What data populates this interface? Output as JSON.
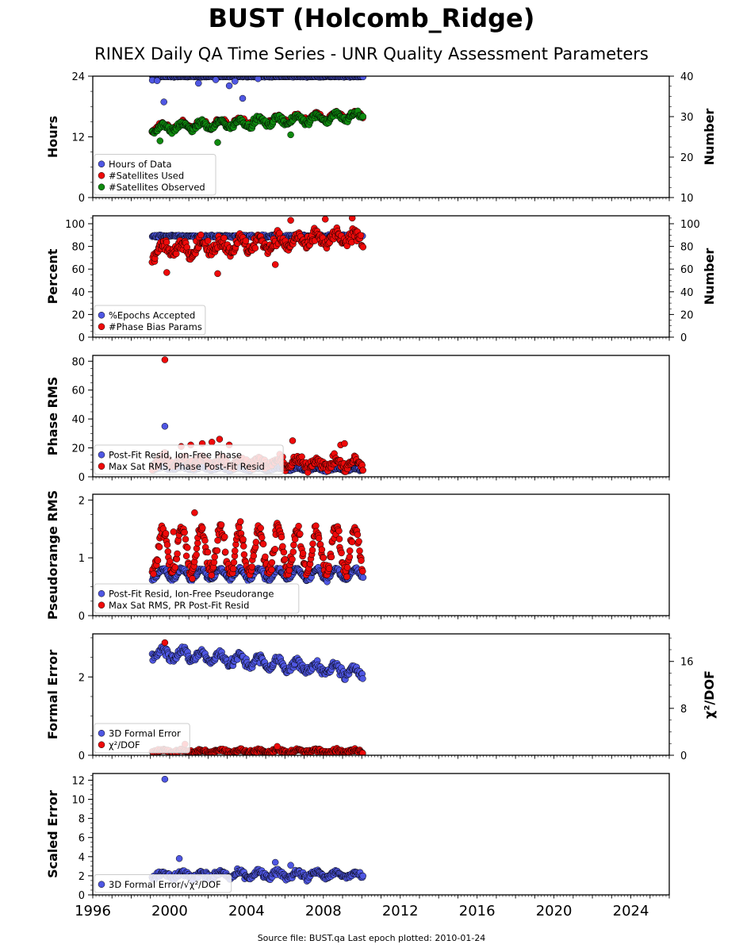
{
  "title": "BUST (Holcomb_Ridge)",
  "subtitle": "RINEX Daily QA Time Series - UNR Quality Assessment Parameters",
  "footer": "Source file: BUST.qa Last epoch plotted: 2010-01-24",
  "colors": {
    "blue": "#4f57e3",
    "red": "#ee0a0a",
    "green": "#0f8a0f"
  },
  "x_axis": {
    "range": [
      1996,
      2026
    ],
    "ticks": [
      "1996",
      "2000",
      "2004",
      "2008",
      "2012",
      "2016",
      "2020",
      "2024"
    ]
  },
  "chart_data": [
    {
      "type": "scatter",
      "ylabel": "Hours",
      "y_range": [
        0,
        24
      ],
      "y_ticks": [
        "0",
        "12",
        "24"
      ],
      "right_axis": {
        "label": "Number",
        "range": [
          10,
          40
        ],
        "ticks": [
          "10",
          "20",
          "30",
          "40"
        ]
      },
      "legend": {
        "placement": "bottom-left",
        "entries": [
          {
            "label": "Hours of Data",
            "color": "blue"
          },
          {
            "label": "#Satellites Used",
            "color": "red"
          },
          {
            "label": "#Satellites Observed",
            "color": "green"
          }
        ]
      },
      "series": [
        {
          "name": "Hours of Data",
          "color": "blue",
          "axis": "left",
          "start": 1999.1,
          "end": 2010.07,
          "base": 23.9,
          "seasonal": 0,
          "trend": 0,
          "noise": 0.1,
          "outliers": [
            [
              1999.1,
              23.2
            ],
            [
              1999.35,
              23.1
            ],
            [
              1999.7,
              18.9
            ],
            [
              2001.5,
              22.6
            ],
            [
              2002.4,
              23.3
            ],
            [
              2003.1,
              22.1
            ],
            [
              2003.4,
              23.0
            ],
            [
              2003.8,
              19.6
            ],
            [
              2004.6,
              23.5
            ]
          ]
        },
        {
          "name": "#Satellites Used",
          "color": "red",
          "axis": "right",
          "start": 1999.1,
          "end": 2010.07,
          "base": 27.3,
          "seasonal": 0.8,
          "trend": 0.3,
          "noise": 0.6,
          "outliers": []
        },
        {
          "name": "#Satellites Observed",
          "color": "green",
          "axis": "right",
          "start": 1999.1,
          "end": 2010.07,
          "base": 27.0,
          "seasonal": 0.9,
          "trend": 0.3,
          "noise": 0.7,
          "outliers": [
            [
              1999.5,
              24.0
            ],
            [
              2002.5,
              23.6
            ],
            [
              2006.3,
              25.5
            ]
          ]
        }
      ]
    },
    {
      "type": "scatter",
      "ylabel": "Percent",
      "y_range": [
        0,
        107
      ],
      "y_ticks": [
        "0",
        "20",
        "40",
        "60",
        "80",
        "100"
      ],
      "right_axis": {
        "label": "Number",
        "range": [
          0,
          107
        ],
        "ticks": [
          "0",
          "20",
          "40",
          "60",
          "80",
          "100"
        ]
      },
      "legend": {
        "placement": "bottom-left",
        "entries": [
          {
            "label": "%Epochs Accepted",
            "color": "blue"
          },
          {
            "label": "#Phase Bias Params",
            "color": "red"
          }
        ]
      },
      "series": [
        {
          "name": "%Epochs Accepted",
          "color": "blue",
          "axis": "left",
          "start": 1999.1,
          "end": 2010.07,
          "base": 89,
          "seasonal": 0,
          "trend": 0,
          "noise": 1.2,
          "outliers": []
        },
        {
          "name": "#Phase Bias Params",
          "color": "red",
          "axis": "right",
          "start": 1999.1,
          "end": 2010.07,
          "base": 77,
          "seasonal": 5,
          "trend": 1.0,
          "noise": 6,
          "outliers": [
            [
              1999.85,
              57
            ],
            [
              2002.5,
              56
            ],
            [
              2006.3,
              103
            ],
            [
              2005.5,
              64
            ],
            [
              2008.1,
              104
            ],
            [
              2009.5,
              105
            ]
          ]
        }
      ]
    },
    {
      "type": "scatter",
      "ylabel": "Phase RMS",
      "y_range": [
        0,
        84
      ],
      "y_ticks": [
        "0",
        "20",
        "40",
        "60",
        "80"
      ],
      "legend": {
        "placement": "bottom-left",
        "entries": [
          {
            "label": "Post-Fit Resid, Ion-Free Phase",
            "color": "blue"
          },
          {
            "label": "Max Sat RMS, Phase Post-Fit Resid",
            "color": "red"
          }
        ]
      },
      "series": [
        {
          "name": "Post-Fit Resid, Ion-Free Phase",
          "color": "blue",
          "axis": "left",
          "start": 1999.1,
          "end": 2010.07,
          "base": 6,
          "seasonal": 0.8,
          "trend": -0.1,
          "noise": 0.8,
          "outliers": [
            [
              1999.75,
              35
            ]
          ]
        },
        {
          "name": "Max Sat RMS, Phase Post-Fit Resid",
          "color": "red",
          "axis": "left",
          "start": 1999.1,
          "end": 2010.07,
          "base": 11,
          "seasonal": 2.5,
          "trend": -0.2,
          "noise": 3.5,
          "outliers": [
            [
              1999.75,
              81
            ],
            [
              2000.6,
              21
            ],
            [
              2001.1,
              22
            ],
            [
              2001.7,
              23
            ],
            [
              2002.2,
              24
            ],
            [
              2002.6,
              26
            ],
            [
              2003.1,
              22
            ],
            [
              2006.4,
              25
            ],
            [
              2008.9,
              22
            ],
            [
              2009.1,
              23
            ]
          ]
        }
      ]
    },
    {
      "type": "scatter",
      "ylabel": "Pseudorange RMS",
      "y_range": [
        0,
        2.1
      ],
      "y_ticks": [
        "0",
        "1",
        "2"
      ],
      "legend": {
        "placement": "bottom-left",
        "entries": [
          {
            "label": "Post-Fit Resid, Ion-Free Pseudorange",
            "color": "blue"
          },
          {
            "label": "Max Sat RMS, PR Post-Fit Resid",
            "color": "red"
          }
        ]
      },
      "series": [
        {
          "name": "Post-Fit Resid, Ion-Free Pseudorange",
          "color": "blue",
          "axis": "left",
          "start": 1999.1,
          "end": 2010.07,
          "base": 0.72,
          "seasonal": 0.09,
          "trend": 0,
          "noise": 0.04,
          "outliers": []
        },
        {
          "name": "Max Sat RMS, PR Post-Fit Resid",
          "color": "red",
          "axis": "left",
          "start": 1999.1,
          "end": 2010.07,
          "base": 1.12,
          "seasonal": 0.38,
          "trend": 0,
          "noise": 0.13,
          "outliers": [
            [
              2000.2,
              1.45
            ],
            [
              2001.3,
              1.78
            ]
          ]
        }
      ]
    },
    {
      "type": "scatter",
      "ylabel": "Formal Error",
      "y_range": [
        0,
        3.1
      ],
      "y_ticks": [
        "0",
        "2"
      ],
      "right_axis": {
        "label": "χ²/DOF",
        "range": [
          0,
          20.7
        ],
        "ticks": [
          "0",
          "8",
          "16"
        ]
      },
      "legend": {
        "placement": "bottom-left",
        "entries": [
          {
            "label": "3D Formal Error",
            "color": "blue"
          },
          {
            "label": "χ²/DOF",
            "color": "red"
          }
        ]
      },
      "series": [
        {
          "name": "3D Formal Error",
          "color": "blue",
          "axis": "left",
          "start": 1999.1,
          "end": 2010.07,
          "base": 2.65,
          "seasonal": 0.12,
          "trend": -0.05,
          "noise": 0.12,
          "outliers": []
        },
        {
          "name": "χ²/DOF",
          "color": "red",
          "axis": "right",
          "start": 1999.1,
          "end": 2010.07,
          "base": 0.7,
          "seasonal": 0.2,
          "trend": 0,
          "noise": 0.3,
          "outliers": [
            [
              1999.75,
              19.2
            ],
            [
              2000.8,
              1.9
            ],
            [
              2005.6,
              1.5
            ]
          ]
        }
      ]
    },
    {
      "type": "scatter",
      "ylabel": "Scaled Error",
      "y_range": [
        0,
        12.7
      ],
      "y_ticks": [
        "0",
        "2",
        "4",
        "6",
        "8",
        "10",
        "12"
      ],
      "legend": {
        "placement": "bottom-left",
        "entries": [
          {
            "label": "3D Formal Error/√χ²/DOF",
            "color": "blue"
          }
        ]
      },
      "series": [
        {
          "name": "3D Formal Error/√χ²/DOF",
          "color": "blue",
          "axis": "left",
          "start": 1999.1,
          "end": 2010.07,
          "base": 2.1,
          "seasonal": 0.3,
          "trend": 0,
          "noise": 0.35,
          "outliers": [
            [
              1999.75,
              12.1
            ],
            [
              2000.5,
              3.8
            ],
            [
              2005.5,
              3.4
            ],
            [
              2006.3,
              3.1
            ]
          ]
        }
      ]
    }
  ]
}
